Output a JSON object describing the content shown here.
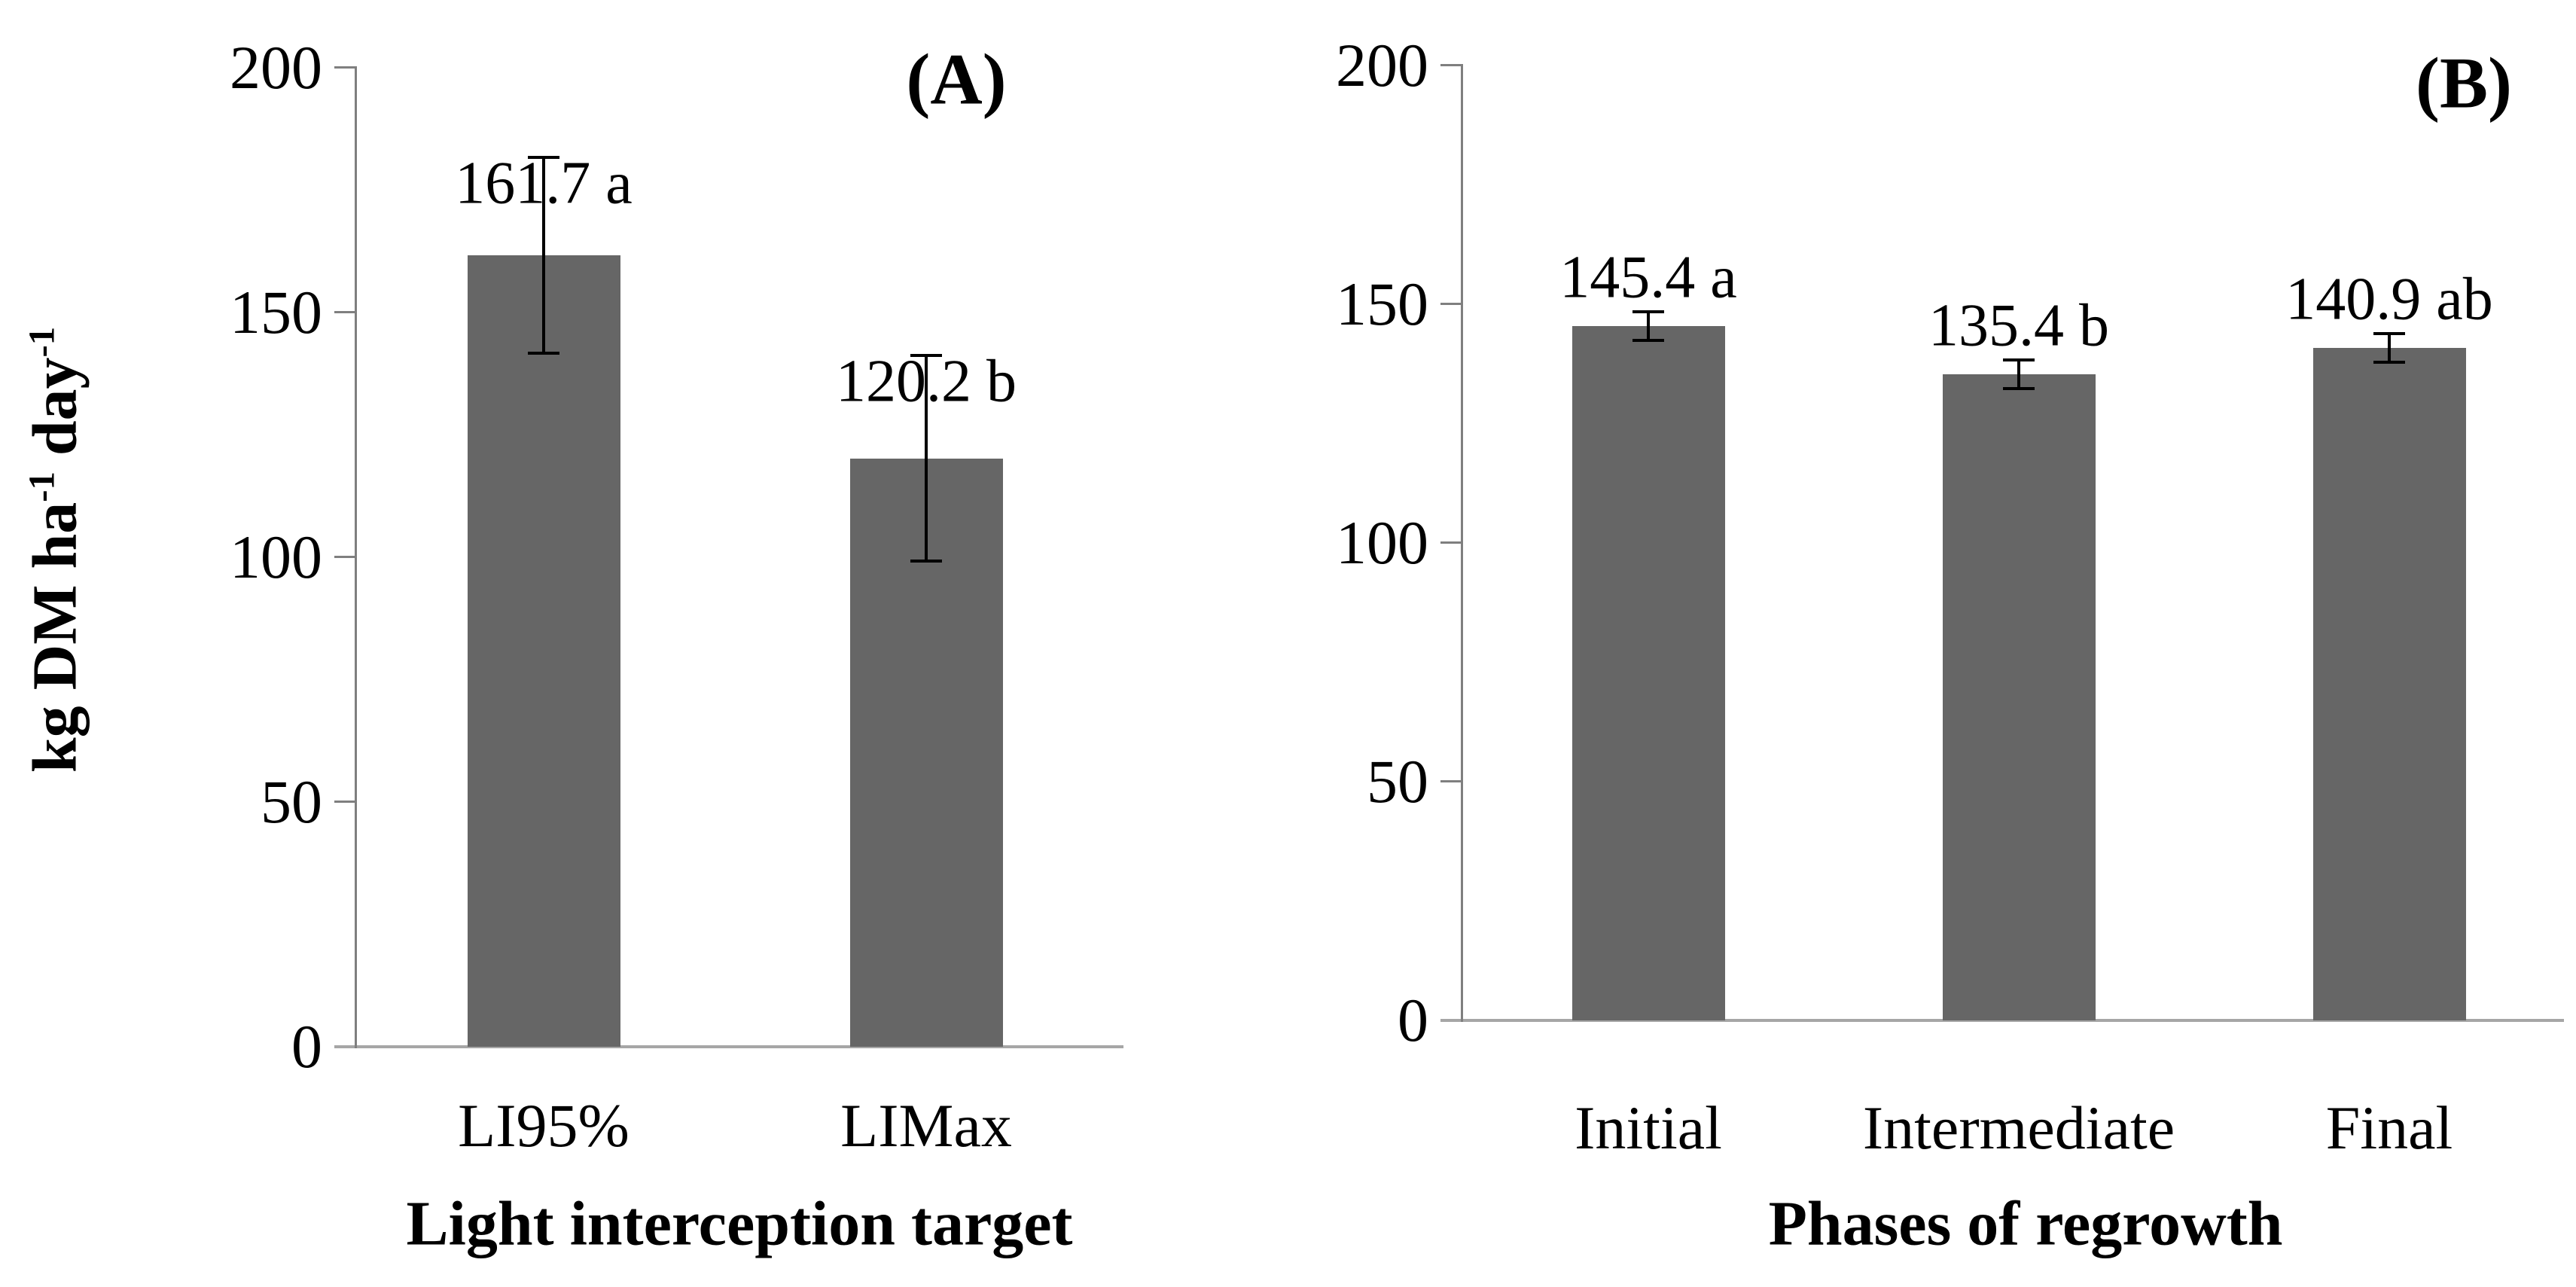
{
  "figure": {
    "y_axis_title": {
      "base1": "kg DM ha",
      "sup1": "-1",
      "base2": " day",
      "sup2": "-1"
    },
    "colors": {
      "bar": "#666666",
      "axis": "#7f7f7f",
      "baseline": "#a6a6a6",
      "error": "#000000",
      "text": "#000000"
    }
  },
  "chart_data": [
    {
      "type": "bar",
      "panel_label": "(A)",
      "title": "",
      "xlabel": "Light interception target",
      "ylabel": "kg DM ha-1 day-1",
      "categories": [
        "LI95%",
        "LIMax"
      ],
      "values": [
        161.7,
        120.2
      ],
      "error_bars": [
        20,
        21
      ],
      "bar_value_labels": [
        "161.7 a",
        "120.2 b"
      ],
      "yticks": [
        0,
        50,
        100,
        150,
        200
      ],
      "ylim": [
        0,
        200
      ],
      "grid": false,
      "legend": false
    },
    {
      "type": "bar",
      "panel_label": "(B)",
      "title": "",
      "xlabel": "Phases of regrowth",
      "ylabel": "",
      "categories": [
        "Initial",
        "Intermediate",
        "Final"
      ],
      "values": [
        145.4,
        135.4,
        140.9
      ],
      "error_bars": [
        3,
        3,
        3
      ],
      "bar_value_labels": [
        "145.4 a",
        "135.4 b",
        "140.9 ab"
      ],
      "yticks": [
        0,
        50,
        100,
        150,
        200
      ],
      "ylim": [
        0,
        200
      ],
      "grid": false,
      "legend": false
    }
  ]
}
